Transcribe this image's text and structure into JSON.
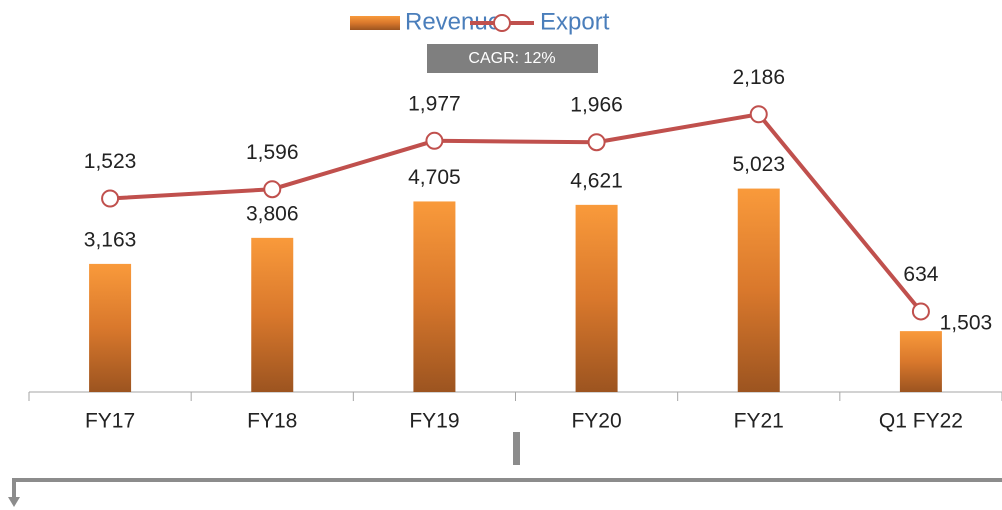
{
  "chart_data": {
    "type": "bar",
    "annotation": "CAGR: 12%",
    "categories": [
      "FY17",
      "FY18",
      "FY19",
      "FY20",
      "FY21",
      "Q1 FY22"
    ],
    "series": [
      {
        "name": "Revenue",
        "type": "bar",
        "color": "#f79a3e",
        "values": [
          3163,
          3806,
          4705,
          4621,
          5023,
          1503
        ],
        "value_labels": [
          "3,163",
          "3,806",
          "4,705",
          "4,621",
          "5,023",
          "1,503"
        ]
      },
      {
        "name": "Export",
        "type": "line",
        "axis": "y2",
        "color": "#c0504d",
        "values": [
          1523,
          1596,
          1977,
          1966,
          2186,
          634
        ],
        "value_labels": [
          "1,523",
          "1,596",
          "1,977",
          "1,966",
          "2,186",
          "634"
        ]
      }
    ],
    "ylim": [
      0,
      8000
    ],
    "y2lim": [
      0,
      2550
    ],
    "legend": "top"
  }
}
